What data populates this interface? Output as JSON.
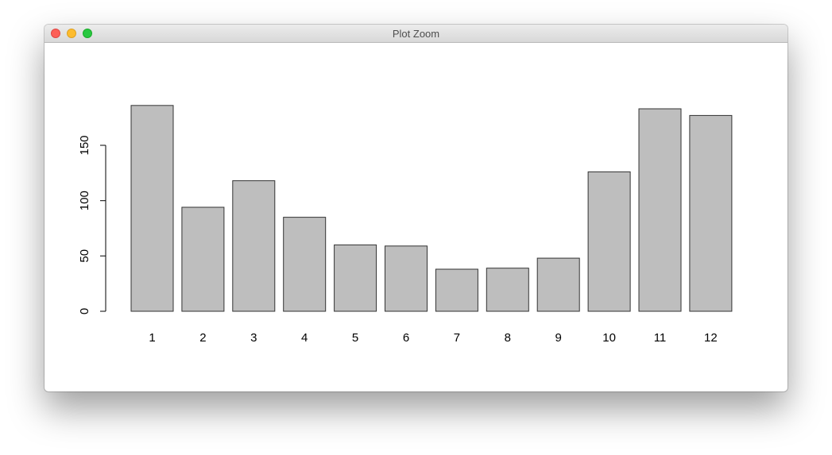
{
  "window": {
    "title": "Plot Zoom"
  },
  "chart_data": {
    "type": "bar",
    "categories": [
      "1",
      "2",
      "3",
      "4",
      "5",
      "6",
      "7",
      "8",
      "9",
      "10",
      "11",
      "12"
    ],
    "values": [
      186,
      94,
      118,
      85,
      60,
      59,
      38,
      39,
      48,
      126,
      183,
      177
    ],
    "title": "",
    "xlabel": "",
    "ylabel": "",
    "ylim": [
      0,
      186
    ],
    "yticks": [
      "0",
      "50",
      "100",
      "150"
    ],
    "bar_fill": "#bebebe",
    "bar_stroke": "#333333",
    "grid": false
  }
}
